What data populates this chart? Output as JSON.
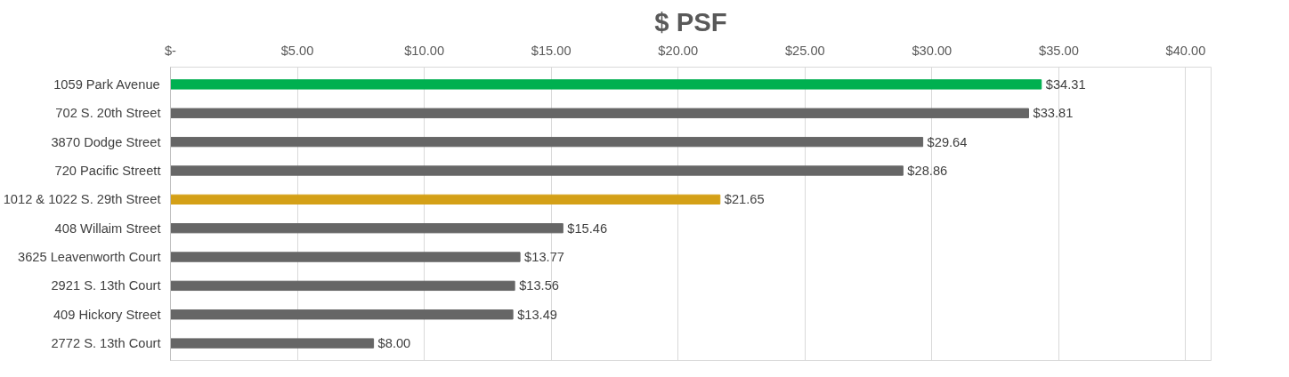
{
  "chart_data": {
    "type": "bar",
    "orientation": "horizontal",
    "title": "$ PSF",
    "categories": [
      "1059 Park Avenue",
      "702 S. 20th Street",
      "3870 Dodge Street",
      "720 Pacific Streett",
      "1012 & 1022 S. 29th Street",
      "408 Willaim Street",
      "3625 Leavenworth Court",
      "2921 S. 13th Court",
      "409 Hickory Street",
      "2772 S. 13th Court"
    ],
    "values": [
      34.31,
      33.81,
      29.64,
      28.86,
      21.65,
      15.46,
      13.77,
      13.56,
      13.49,
      8.0
    ],
    "colors": [
      "#00b050",
      "#666666",
      "#666666",
      "#666666",
      "#d4a017",
      "#666666",
      "#666666",
      "#666666",
      "#666666",
      "#666666"
    ],
    "value_labels": [
      "$34.31",
      "$33.81",
      "$29.64",
      "$28.86",
      "$21.65",
      "$15.46",
      "$13.77",
      "$13.56",
      "$13.49",
      "$8.00"
    ],
    "xlim": [
      0,
      41
    ],
    "xticks": [
      {
        "value": 0,
        "label": "$-"
      },
      {
        "value": 5,
        "label": "$5.00"
      },
      {
        "value": 10,
        "label": "$10.00"
      },
      {
        "value": 15,
        "label": "$15.00"
      },
      {
        "value": 20,
        "label": "$20.00"
      },
      {
        "value": 25,
        "label": "$25.00"
      },
      {
        "value": 30,
        "label": "$30.00"
      },
      {
        "value": 35,
        "label": "$35.00"
      },
      {
        "value": 40,
        "label": "$40.00"
      }
    ],
    "grid": "x"
  }
}
